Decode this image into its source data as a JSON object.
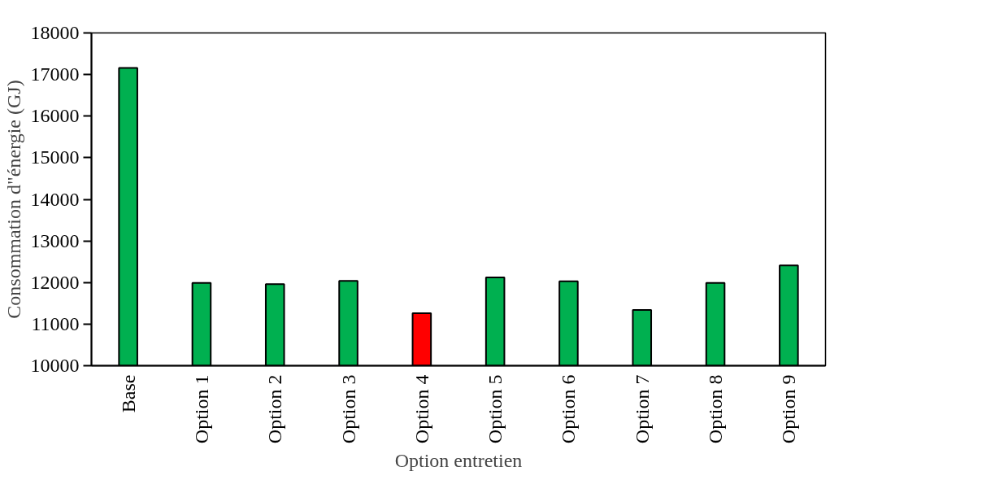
{
  "chart_data": {
    "type": "bar",
    "xlabel": "Option entretien",
    "ylabel": "Consommation d\"énergie (GJ)",
    "categories": [
      "Base",
      "Option 1",
      "Option 2",
      "Option 3",
      "Option 4",
      "Option 5",
      "Option 6",
      "Option 7",
      "Option 8",
      "Option 9"
    ],
    "values": [
      17160,
      11990,
      11960,
      12040,
      11260,
      12120,
      12030,
      11340,
      11990,
      12410
    ],
    "colors": [
      "#00b050",
      "#00b050",
      "#00b050",
      "#00b050",
      "#ff0000",
      "#00b050",
      "#00b050",
      "#00b050",
      "#00b050",
      "#00b050"
    ],
    "ylim": [
      10000,
      18000
    ],
    "yticks": [
      10000,
      11000,
      12000,
      13000,
      14000,
      15000,
      16000,
      17000,
      18000
    ],
    "grid": false
  }
}
